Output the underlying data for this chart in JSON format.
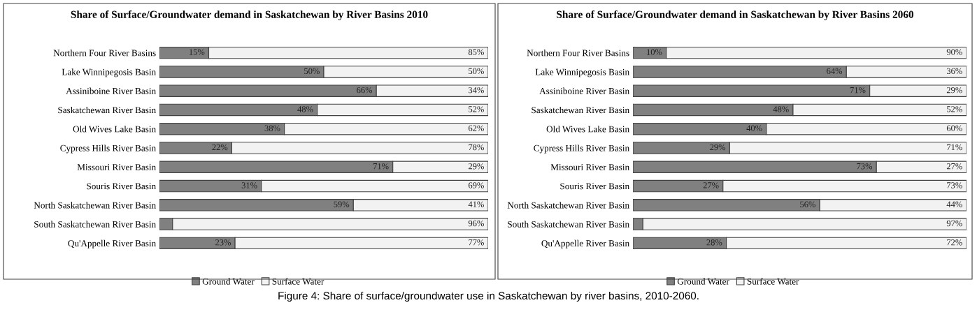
{
  "chart_data": [
    {
      "type": "bar",
      "orientation": "horizontal",
      "stacked": true,
      "title": "Share of Surface/Groundwater demand in Saskatchewan by River Basins 2010",
      "categories": [
        "Northern Four River Basins",
        "Lake Winnipegosis Basin",
        "Assiniboine River Basin",
        "Saskatchewan River Basin",
        "Old Wives Lake Basin",
        "Cypress Hills River Basin",
        "Missouri River Basin",
        "Souris River Basin",
        "North Saskatchewan River Basin",
        "South Saskatchewan River Basin",
        "Qu'Appelle River Basin"
      ],
      "series": [
        {
          "name": "Ground Water",
          "color": "#808080",
          "values": [
            15,
            50,
            66,
            48,
            38,
            22,
            71,
            31,
            59,
            4,
            23
          ],
          "value_labels": [
            "15%",
            "50%",
            "66%",
            "48%",
            "38%",
            "22%",
            "71%",
            "31%",
            "59%",
            null,
            "23%"
          ]
        },
        {
          "name": "Surface Water",
          "color": "#f2f2f2",
          "values": [
            85,
            50,
            34,
            52,
            62,
            78,
            29,
            69,
            41,
            96,
            77
          ],
          "value_labels": [
            "85%",
            "50%",
            "34%",
            "52%",
            "62%",
            "78%",
            "29%",
            "69%",
            "41%",
            "96%",
            "77%"
          ]
        }
      ],
      "legend": "bottom",
      "annotations": [
        "Figure 4: Share of surface/groundwater use in Saskatchewan by river basins, 2010-2060."
      ]
    },
    {
      "type": "bar",
      "orientation": "horizontal",
      "stacked": true,
      "title": "Share of Surface/Groundwater demand in Saskatchewan by River Basins 2060",
      "categories": [
        "Northern Four River Basins",
        "Lake Winnipegosis Basin",
        "Assiniboine River Basin",
        "Saskatchewan River Basin",
        "Old Wives Lake Basin",
        "Cypress Hills River Basin",
        "Missouri River Basin",
        "Souris River Basin",
        "North Saskatchewan River Basin",
        "South Saskatchewan River Basin",
        "Qu'Appelle River Basin"
      ],
      "series": [
        {
          "name": "Ground Water",
          "color": "#808080",
          "values": [
            10,
            64,
            71,
            48,
            40,
            29,
            73,
            27,
            56,
            3,
            28
          ],
          "value_labels": [
            "10%",
            "64%",
            "71%",
            "48%",
            "40%",
            "29%",
            "73%",
            "27%",
            "56%",
            null,
            "28%"
          ]
        },
        {
          "name": "Surface Water",
          "color": "#f2f2f2",
          "values": [
            90,
            36,
            29,
            52,
            60,
            71,
            27,
            73,
            44,
            97,
            72
          ],
          "value_labels": [
            "90%",
            "36%",
            "29%",
            "52%",
            "60%",
            "71%",
            "27%",
            "73%",
            "44%",
            "97%",
            "72%"
          ]
        }
      ],
      "legend": "bottom"
    }
  ]
}
